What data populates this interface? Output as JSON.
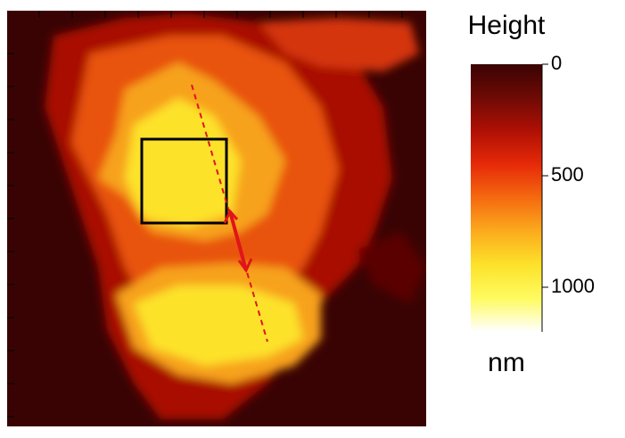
{
  "chart_data": {
    "type": "heatmap",
    "colorbar": {
      "title": "Height",
      "unit": "nm",
      "clim": [
        0,
        1200
      ],
      "ticks": [
        0,
        500,
        1000
      ],
      "colors": [
        "#3a0303",
        "#6e0a05",
        "#b01005",
        "#e62a08",
        "#f56a10",
        "#fbab1d",
        "#fde22a",
        "#fefb60",
        "#ffffff"
      ]
    }
  }
}
